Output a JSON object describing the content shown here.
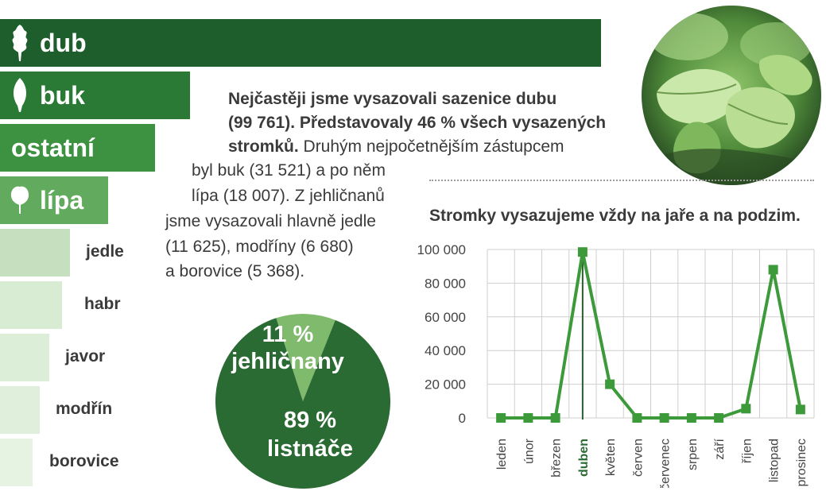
{
  "species_bars": [
    {
      "label": "dub",
      "value": 99761,
      "icon": "oak-leaf-icon",
      "color": "#1e5e2c"
    },
    {
      "label": "buk",
      "value": 31521,
      "icon": "beech-leaf-icon",
      "color": "#2a7a35"
    },
    {
      "label": "ostatní",
      "value": null,
      "icon": "",
      "color": "#3c9241"
    },
    {
      "label": "lípa",
      "value": 18007,
      "icon": "linden-leaf-icon",
      "color": "#62aa5d"
    },
    {
      "label": "jedle",
      "value": 11625,
      "icon": "",
      "color": "#c6e0bf"
    },
    {
      "label": "habr",
      "value": null,
      "icon": "",
      "color": "#d8ebd3"
    },
    {
      "label": "javor",
      "value": null,
      "icon": "",
      "color": "#ddeed8"
    },
    {
      "label": "modřín",
      "value": 6680,
      "icon": "",
      "color": "#e0efdb"
    },
    {
      "label": "borovice",
      "value": 5368,
      "icon": "",
      "color": "#e6f2e2"
    }
  ],
  "text": {
    "bold_line1": "Nejčastěji jsme vysazovali sazenice dubu",
    "bold_line2": "(99 761). Představovaly 46 % všech vysazených",
    "bold_line3": "stromků.",
    "line3_rest": " Druhým nejpočetnějším zástupcem",
    "line4": "byl buk (31 521) a po něm",
    "line5": "lípa (18 007). Z jehličnanů",
    "line6": "jsme vysazovali hlavně jedle",
    "line7": "(11 625), modříny (6 680)",
    "line8": "a borovice (5 368)."
  },
  "pie": {
    "slices": [
      {
        "pct": "11 %",
        "name": "jehličnany",
        "value": 11,
        "color": "#7fba6d"
      },
      {
        "pct": "89 %",
        "name": "listnáče",
        "value": 89,
        "color": "#2a6b33"
      }
    ]
  },
  "chart_data": {
    "type": "line",
    "title": "Stromky vysazujeme vždy na jaře a na podzim.",
    "categories": [
      "leden",
      "únor",
      "březen",
      "duben",
      "květen",
      "červen",
      "červenec",
      "srpen",
      "září",
      "říjen",
      "listopad",
      "prosinec"
    ],
    "values": [
      0,
      0,
      0,
      98500,
      20000,
      0,
      0,
      0,
      0,
      5500,
      88000,
      5000
    ],
    "yticks": [
      "0",
      "20 000",
      "40 000",
      "60 000",
      "80 000",
      "100 000"
    ],
    "ylim": [
      0,
      100000
    ],
    "highlight": "duben",
    "grid": true,
    "color": "#3d9a3a"
  }
}
